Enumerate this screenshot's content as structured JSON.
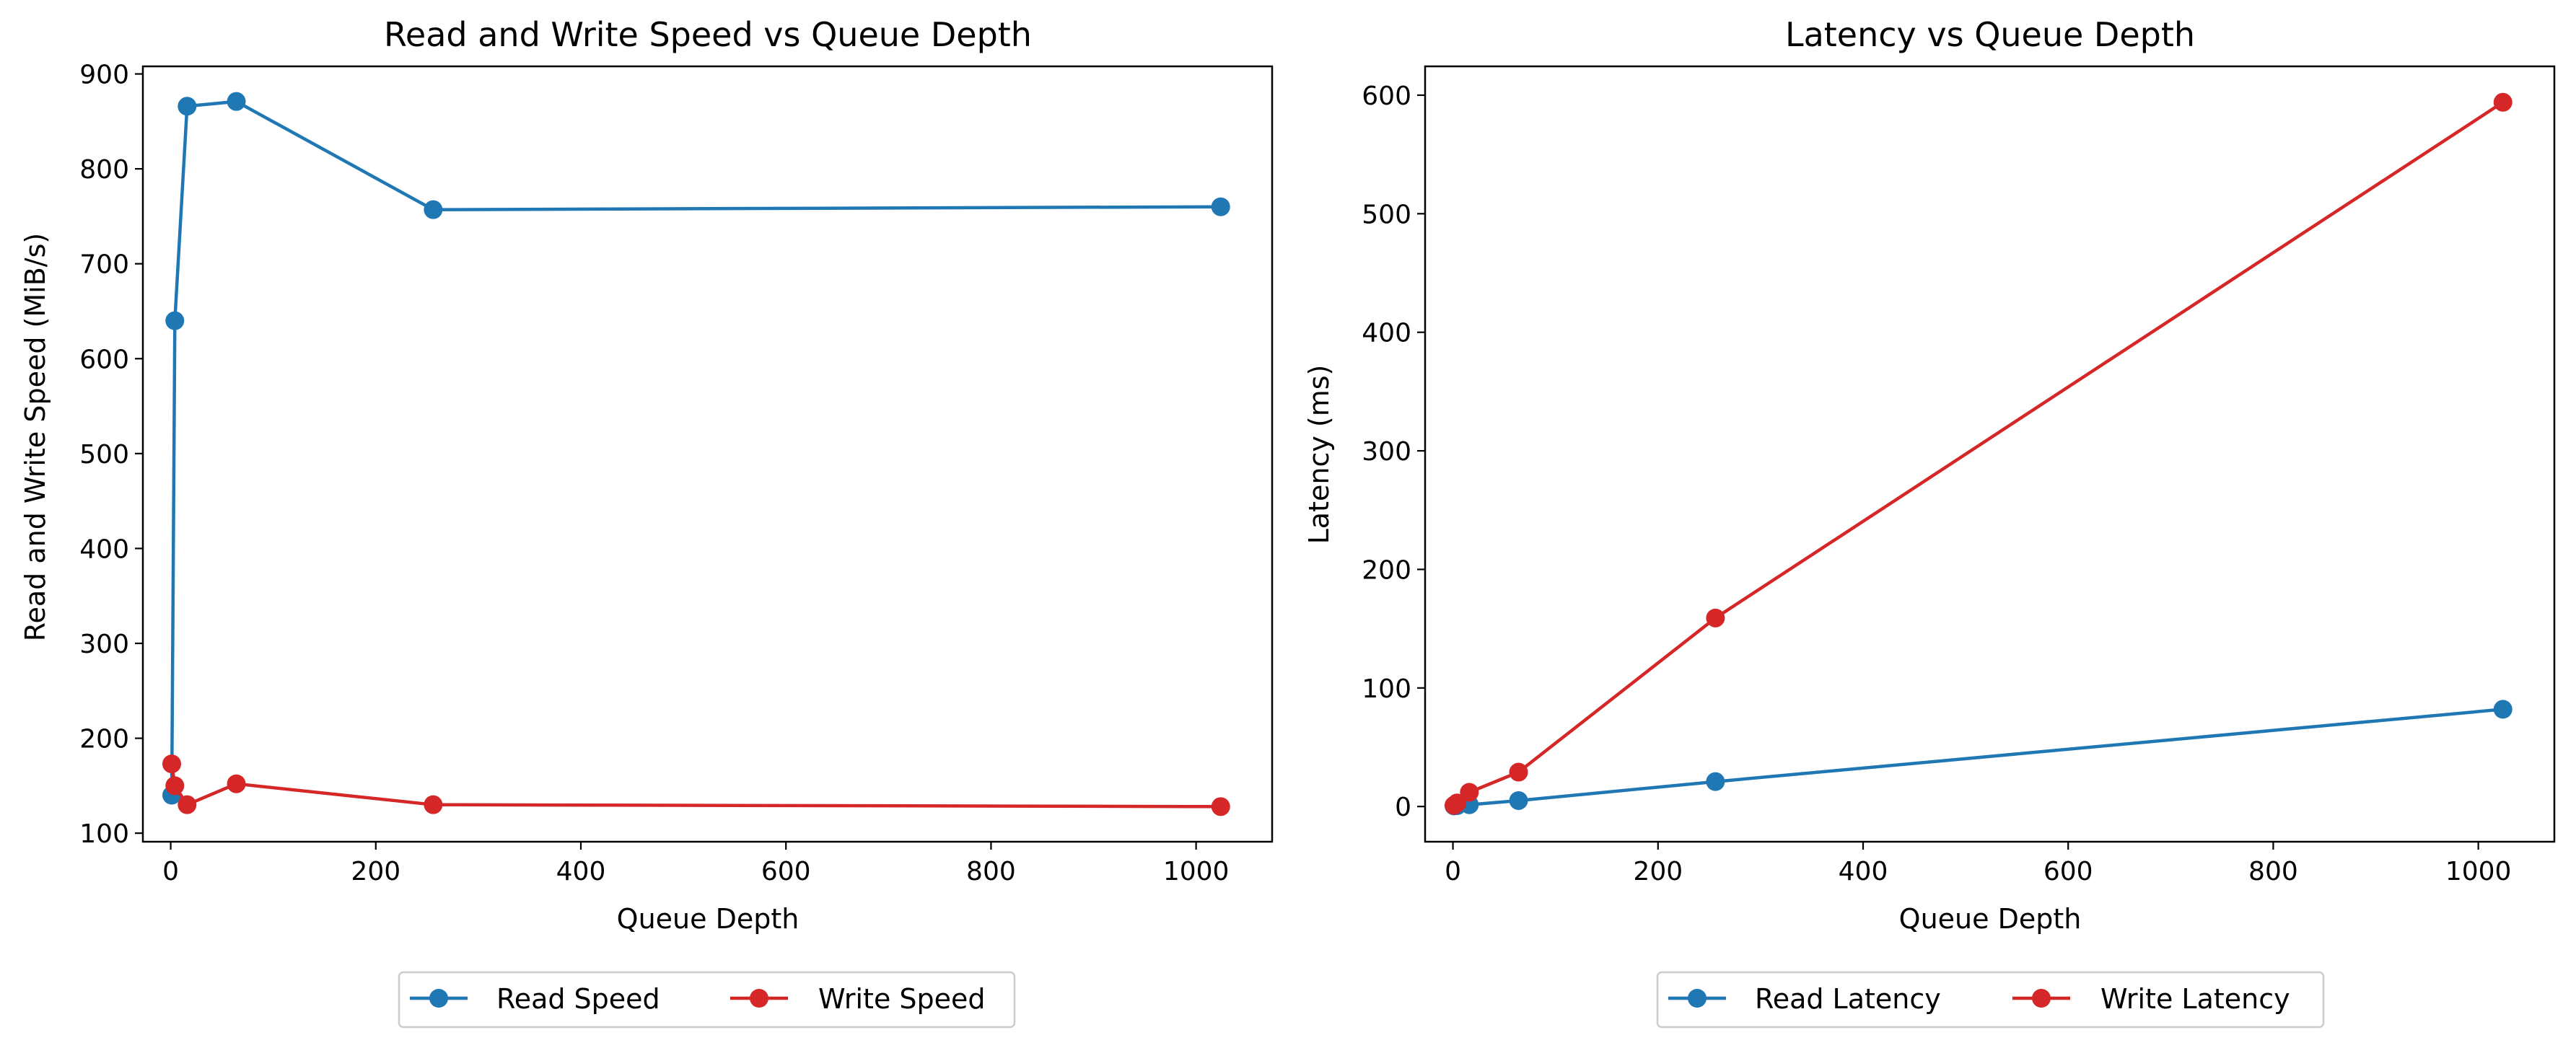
{
  "colors": {
    "read": "#1f77b4",
    "write": "#d62728"
  },
  "chart_data": [
    {
      "type": "line",
      "title": "Read and Write Speed vs Queue Depth",
      "xlabel": "Queue Depth",
      "ylabel": "Read and Write Speed (MiB/s)",
      "xlim": [
        -27.15,
        1074.15
      ],
      "ylim": [
        91,
        908
      ],
      "xticks": [
        0,
        200,
        400,
        600,
        800,
        1000
      ],
      "yticks": [
        100,
        200,
        300,
        400,
        500,
        600,
        700,
        800,
        900
      ],
      "grid": false,
      "legend_position": "bottom-center",
      "series": [
        {
          "name": "Read Speed",
          "color": "#1f77b4",
          "marker": "circle",
          "x": [
            1,
            4,
            16,
            64,
            256,
            1024
          ],
          "y": [
            140,
            640,
            866,
            871,
            757,
            760
          ]
        },
        {
          "name": "Write Speed",
          "color": "#d62728",
          "marker": "circle",
          "x": [
            1,
            4,
            16,
            64,
            256,
            1024
          ],
          "y": [
            173,
            150,
            130,
            152,
            130,
            128
          ]
        }
      ]
    },
    {
      "type": "line",
      "title": "Latency vs Queue Depth",
      "xlabel": "Queue Depth",
      "ylabel": "Latency (ms)",
      "xlim": [
        -27.15,
        1074.15
      ],
      "ylim": [
        -29.7,
        624.3
      ],
      "xticks": [
        0,
        200,
        400,
        600,
        800,
        1000
      ],
      "yticks": [
        0,
        100,
        200,
        300,
        400,
        500,
        600
      ],
      "grid": false,
      "legend_position": "bottom-center",
      "series": [
        {
          "name": "Read Latency",
          "color": "#1f77b4",
          "marker": "circle",
          "x": [
            1,
            4,
            16,
            64,
            256,
            1024
          ],
          "y": [
            0.5,
            0.7,
            1.5,
            5,
            21,
            82
          ]
        },
        {
          "name": "Write Latency",
          "color": "#d62728",
          "marker": "circle",
          "x": [
            1,
            4,
            16,
            64,
            256,
            1024
          ],
          "y": [
            1,
            3,
            12,
            29,
            159,
            594
          ]
        }
      ]
    }
  ]
}
